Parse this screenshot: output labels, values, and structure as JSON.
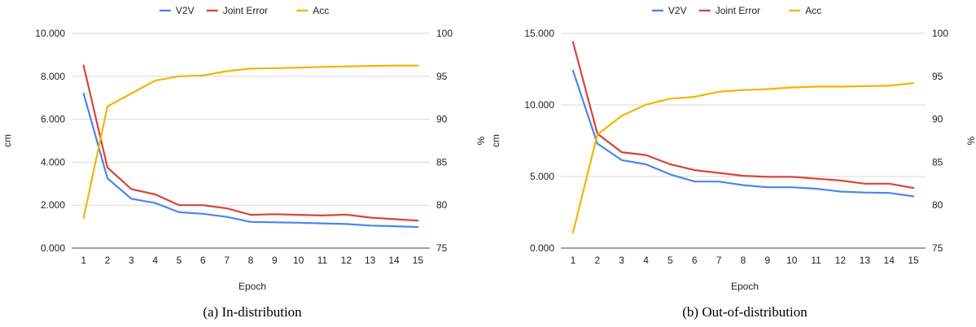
{
  "chart_data": [
    {
      "type": "line",
      "caption": "(a) In-distribution",
      "xlabel": "Epoch",
      "ylabel": "cm",
      "y2label": "%",
      "x": [
        1,
        2,
        3,
        4,
        5,
        6,
        7,
        8,
        9,
        10,
        11,
        12,
        13,
        14,
        15
      ],
      "ylim": [
        0,
        10
      ],
      "yticks": [
        "0.000",
        "2.000",
        "4.000",
        "6.000",
        "8.000",
        "10.000"
      ],
      "y2lim": [
        75,
        100
      ],
      "y2ticks": [
        "75",
        "80",
        "85",
        "90",
        "95",
        "100"
      ],
      "legend_position": "top-center",
      "grid": true,
      "series": [
        {
          "name": "V2V",
          "axis": "left",
          "color": "#4a86e8",
          "values": [
            7.2,
            3.25,
            2.3,
            2.1,
            1.67,
            1.6,
            1.45,
            1.22,
            1.2,
            1.18,
            1.15,
            1.12,
            1.05,
            1.02,
            0.98
          ]
        },
        {
          "name": "Joint Error",
          "axis": "left",
          "color": "#db4437",
          "values": [
            8.5,
            3.75,
            2.75,
            2.5,
            2.0,
            2.0,
            1.85,
            1.55,
            1.58,
            1.55,
            1.52,
            1.56,
            1.42,
            1.35,
            1.28
          ]
        },
        {
          "name": "Acc",
          "axis": "right",
          "color": "#f4b400",
          "values": [
            78.5,
            91.5,
            93.0,
            94.5,
            95.0,
            95.1,
            95.6,
            95.9,
            95.95,
            96.0,
            96.1,
            96.15,
            96.2,
            96.25,
            96.25
          ]
        }
      ]
    },
    {
      "type": "line",
      "caption": "(b) Out-of-distribution",
      "xlabel": "Epoch",
      "ylabel": "cm",
      "y2label": "%",
      "x": [
        1,
        2,
        3,
        4,
        5,
        6,
        7,
        8,
        9,
        10,
        11,
        12,
        13,
        14,
        15
      ],
      "ylim": [
        0,
        15
      ],
      "yticks": [
        "0.000",
        "5.000",
        "10.000",
        "15.000"
      ],
      "y2lim": [
        75,
        100
      ],
      "y2ticks": [
        "75",
        "80",
        "85",
        "90",
        "95",
        "100"
      ],
      "legend_position": "top-center",
      "grid": true,
      "series": [
        {
          "name": "V2V",
          "axis": "left",
          "color": "#4a86e8",
          "values": [
            12.4,
            7.3,
            6.15,
            5.85,
            5.15,
            4.65,
            4.65,
            4.4,
            4.25,
            4.25,
            4.15,
            3.95,
            3.88,
            3.85,
            3.62
          ]
        },
        {
          "name": "Joint Error",
          "axis": "left",
          "color": "#db4437",
          "values": [
            14.4,
            8.0,
            6.7,
            6.5,
            5.85,
            5.45,
            5.25,
            5.05,
            4.98,
            4.98,
            4.85,
            4.72,
            4.5,
            4.5,
            4.2
          ]
        },
        {
          "name": "Acc",
          "axis": "right",
          "color": "#f4b400",
          "values": [
            76.8,
            88.2,
            90.4,
            91.7,
            92.4,
            92.6,
            93.2,
            93.4,
            93.5,
            93.7,
            93.8,
            93.8,
            93.85,
            93.9,
            94.2
          ]
        }
      ]
    }
  ]
}
